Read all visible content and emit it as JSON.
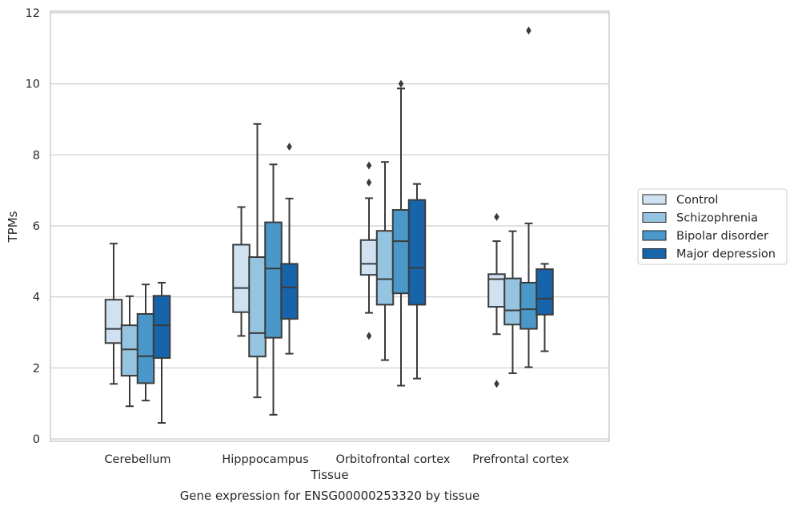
{
  "caption": "Gene expression for ENSG00000253320 by tissue",
  "chart_data": {
    "type": "box",
    "xlabel": "Tissue",
    "ylabel": "TPMs",
    "ylim": [
      0,
      12
    ],
    "yticks": [
      0,
      2,
      4,
      6,
      8,
      10,
      12
    ],
    "grid": true,
    "legend_position": "right",
    "categories": [
      "Cerebellum",
      "Hipppocampus",
      "Orbitofrontal cortex",
      "Prefrontal cortex"
    ],
    "series": [
      {
        "name": "Control",
        "color": "#d0e1f2",
        "boxes": [
          {
            "whislo": 1.55,
            "q1": 2.7,
            "med": 3.1,
            "q3": 3.92,
            "whishi": 5.5,
            "fliers": []
          },
          {
            "whislo": 2.9,
            "q1": 3.57,
            "med": 4.25,
            "q3": 5.47,
            "whishi": 6.53,
            "fliers": []
          },
          {
            "whislo": 3.55,
            "q1": 4.62,
            "med": 4.93,
            "q3": 5.6,
            "whishi": 6.78,
            "fliers": [
              7.7,
              7.22,
              2.9
            ]
          },
          {
            "whislo": 2.95,
            "q1": 3.72,
            "med": 4.5,
            "q3": 4.64,
            "whishi": 5.57,
            "fliers": [
              6.25,
              1.55
            ]
          }
        ]
      },
      {
        "name": "Schizophrenia",
        "color": "#94c4df",
        "boxes": [
          {
            "whislo": 0.92,
            "q1": 1.78,
            "med": 2.52,
            "q3": 3.2,
            "whishi": 4.02,
            "fliers": []
          },
          {
            "whislo": 1.17,
            "q1": 2.32,
            "med": 2.98,
            "q3": 5.12,
            "whishi": 8.87,
            "fliers": []
          },
          {
            "whislo": 2.22,
            "q1": 3.78,
            "med": 4.5,
            "q3": 5.86,
            "whishi": 7.8,
            "fliers": []
          },
          {
            "whislo": 1.85,
            "q1": 3.22,
            "med": 3.62,
            "q3": 4.52,
            "whishi": 5.85,
            "fliers": []
          }
        ]
      },
      {
        "name": "Bipolar disorder",
        "color": "#4a98c9",
        "boxes": [
          {
            "whislo": 1.08,
            "q1": 1.57,
            "med": 2.33,
            "q3": 3.52,
            "whishi": 4.35,
            "fliers": []
          },
          {
            "whislo": 0.68,
            "q1": 2.85,
            "med": 4.8,
            "q3": 6.1,
            "whishi": 7.73,
            "fliers": []
          },
          {
            "whislo": 1.5,
            "q1": 4.1,
            "med": 5.57,
            "q3": 6.45,
            "whishi": 9.87,
            "fliers": [
              10.0
            ]
          },
          {
            "whislo": 2.02,
            "q1": 3.1,
            "med": 3.65,
            "q3": 4.4,
            "whishi": 6.07,
            "fliers": [
              11.5
            ]
          }
        ]
      },
      {
        "name": "Major depression",
        "color": "#1764ab",
        "boxes": [
          {
            "whislo": 0.45,
            "q1": 2.28,
            "med": 3.2,
            "q3": 4.03,
            "whishi": 4.4,
            "fliers": []
          },
          {
            "whislo": 2.4,
            "q1": 3.38,
            "med": 4.27,
            "q3": 4.93,
            "whishi": 6.77,
            "fliers": [
              8.23
            ]
          },
          {
            "whislo": 1.7,
            "q1": 3.78,
            "med": 4.82,
            "q3": 6.73,
            "whishi": 7.18,
            "fliers": []
          },
          {
            "whislo": 2.47,
            "q1": 3.5,
            "med": 3.95,
            "q3": 4.78,
            "whishi": 4.93,
            "fliers": []
          }
        ]
      }
    ]
  }
}
